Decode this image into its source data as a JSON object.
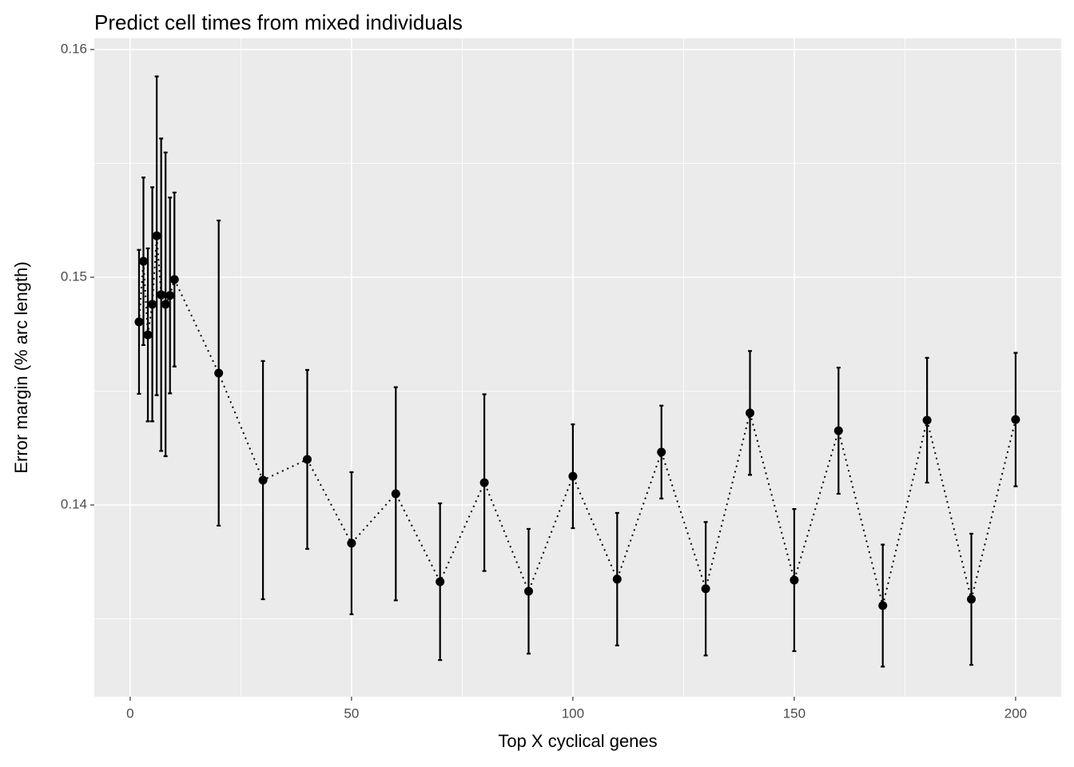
{
  "chart_data": {
    "type": "errorbar-line",
    "title": "Predict cell times from mixed individuals",
    "x_label": "Top X cyclical genes",
    "y_label": "Error margin (% arc length)",
    "series": [
      {
        "color": "#000000",
        "x": [
          2,
          3,
          4,
          5,
          6,
          7,
          8,
          9,
          10,
          20,
          30,
          40,
          50,
          60,
          70,
          80,
          90,
          100,
          110,
          120,
          130,
          140,
          150,
          160,
          170,
          180,
          190,
          200
        ],
        "values": [
          0.14804,
          0.1507,
          0.14747,
          0.14881,
          0.15182,
          0.14923,
          0.14881,
          0.1492,
          0.1499,
          0.14579,
          0.14109,
          0.142,
          0.13832,
          0.14049,
          0.13663,
          0.14098,
          0.13621,
          0.14126,
          0.13674,
          0.14232,
          0.13632,
          0.14404,
          0.1367,
          0.14326,
          0.13558,
          0.14372,
          0.13586,
          0.14375
        ],
        "errors": [
          0.00316,
          0.00368,
          0.0038,
          0.00514,
          0.007,
          0.00686,
          0.00667,
          0.0043,
          0.00382,
          0.0067,
          0.00523,
          0.00393,
          0.00312,
          0.00468,
          0.00344,
          0.00388,
          0.00274,
          0.00228,
          0.00291,
          0.00204,
          0.00293,
          0.00272,
          0.00312,
          0.00277,
          0.00268,
          0.00274,
          0.00288,
          0.00293
        ]
      }
    ],
    "xlim": [
      -8.1,
      210.3
    ],
    "xticks": [
      0,
      50,
      100,
      150,
      200
    ],
    "ylim": [
      0.13158,
      0.16049
    ],
    "yticks": [
      0.14,
      0.15,
      0.16
    ],
    "grid": true,
    "line_style": "dotted"
  }
}
